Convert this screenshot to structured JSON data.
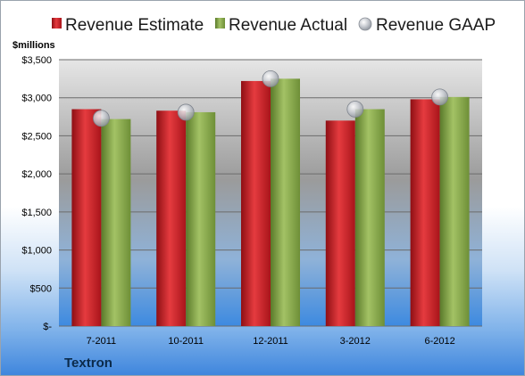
{
  "chart_data": {
    "type": "bar",
    "unit_label": "$millions",
    "footer_label": "Textron",
    "categories": [
      "7-2011",
      "10-2011",
      "12-2011",
      "3-2012",
      "6-2012"
    ],
    "series": [
      {
        "name": "Revenue Estimate",
        "kind": "bar",
        "color": "#d42027",
        "values": [
          2850,
          2830,
          3220,
          2700,
          2980
        ]
      },
      {
        "name": "Revenue Actual",
        "kind": "bar",
        "color": "#8cae4b",
        "values": [
          2720,
          2810,
          3250,
          2850,
          3010
        ]
      },
      {
        "name": "Revenue GAAP",
        "kind": "marker",
        "color": "#b8bcc4",
        "values": [
          2730,
          2810,
          3250,
          2850,
          3010
        ]
      }
    ],
    "y_ticks": [
      "$-",
      "$500",
      "$1,000",
      "$1,500",
      "$2,000",
      "$2,500",
      "$3,000",
      "$3,500"
    ],
    "y_tick_values": [
      0,
      500,
      1000,
      1500,
      2000,
      2500,
      3000,
      3500
    ],
    "ylim": [
      0,
      3500
    ],
    "grid": true,
    "legend_position": "top"
  }
}
